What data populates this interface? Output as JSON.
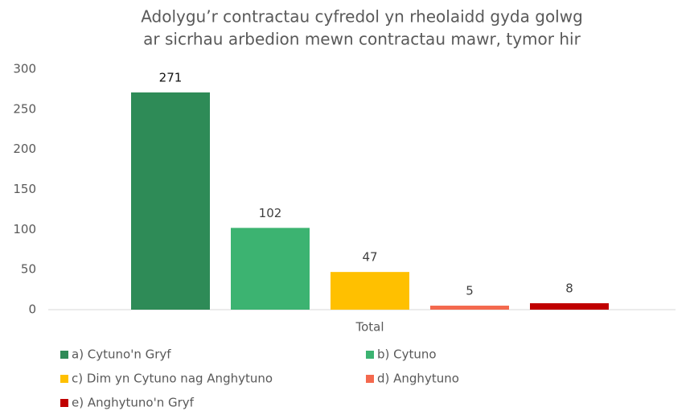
{
  "chart_data": {
    "type": "bar",
    "title": [
      "Adolygu’r contractau cyfredol yn rheolaidd gyda golwg",
      "ar sicrhau arbedion mewn contractau mawr, tymor hir"
    ],
    "categories": [
      "Total"
    ],
    "series": [
      {
        "name": "a) Cytuno'n Gryf",
        "color": "#2e8b57",
        "values": [
          271
        ]
      },
      {
        "name": "b) Cytuno",
        "color": "#3cb371",
        "values": [
          102
        ]
      },
      {
        "name": "c) Dim yn Cytuno nag Anghytuno",
        "color": "#ffc000",
        "values": [
          47
        ]
      },
      {
        "name": "d) Anghytuno",
        "color": "#f4694e",
        "values": [
          5
        ]
      },
      {
        "name": "e) Anghytuno'n Gryf",
        "color": "#c00000",
        "values": [
          8
        ]
      }
    ],
    "ylim": [
      0,
      300
    ],
    "yticks": [
      0,
      50,
      100,
      150,
      200,
      250,
      300
    ],
    "grid": false
  }
}
